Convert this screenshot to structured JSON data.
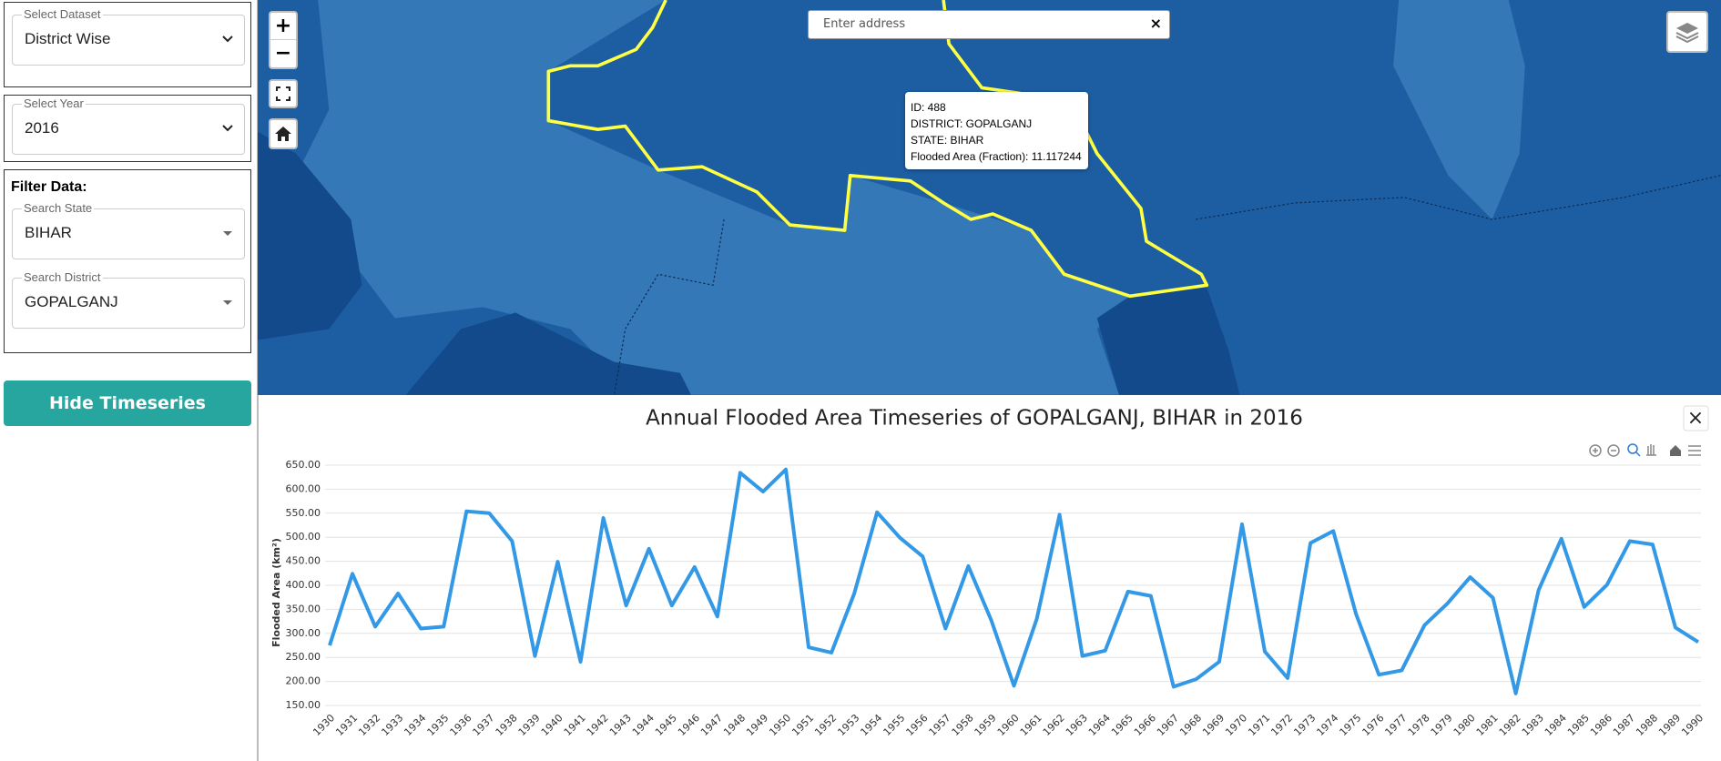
{
  "sidebar": {
    "dataset": {
      "legend": "Select Dataset",
      "value": "District Wise"
    },
    "year": {
      "legend": "Select Year",
      "value": "2016"
    },
    "filter": {
      "title": "Filter Data:",
      "state": {
        "legend": "Search State",
        "value": "BIHAR"
      },
      "district": {
        "legend": "Search District",
        "value": "GOPALGANJ"
      }
    },
    "button": "Hide Timeseries"
  },
  "map": {
    "zoom_in": "+",
    "zoom_out": "−",
    "search": {
      "placeholder": "Enter address",
      "clear": "×"
    },
    "tooltip": {
      "lines": [
        "ID: 488",
        "DISTRICT: GOPALGANJ",
        "STATE: BIHAR",
        "Flooded Area (Fraction): 11.117244"
      ]
    }
  },
  "panel": {
    "close": "×"
  },
  "chart_data": {
    "type": "line",
    "title": "Annual Flooded Area Timeseries of GOPALGANJ, BIHAR in 2016",
    "y_label": "Flooded Area (km²)",
    "color": "#3399e6",
    "categories": [
      "1930",
      "1931",
      "1932",
      "1933",
      "1934",
      "1935",
      "1936",
      "1937",
      "1938",
      "1939",
      "1940",
      "1941",
      "1942",
      "1943",
      "1944",
      "1945",
      "1946",
      "1947",
      "1948",
      "1949",
      "1950",
      "1951",
      "1952",
      "1953",
      "1954",
      "1955",
      "1956",
      "1957",
      "1958",
      "1959",
      "1960",
      "1961",
      "1962",
      "1963",
      "1964",
      "1965",
      "1966",
      "1967",
      "1968",
      "1969",
      "1970",
      "1971",
      "1972",
      "1973",
      "1974",
      "1975",
      "1976",
      "1977",
      "1978",
      "1979",
      "1980",
      "1981",
      "1982",
      "1983",
      "1984",
      "1985",
      "1986",
      "1987",
      "1988",
      "1989",
      "1990"
    ],
    "values": [
      275,
      424,
      314,
      383,
      310,
      314,
      554,
      550,
      492,
      253,
      449,
      241,
      540,
      358,
      476,
      358,
      438,
      335,
      634,
      595,
      641,
      271,
      260,
      383,
      552,
      499,
      460,
      310,
      440,
      328,
      191,
      330,
      547,
      253,
      264,
      387,
      378,
      189,
      205,
      241,
      527,
      262,
      207,
      488,
      513,
      340,
      214,
      223,
      317,
      362,
      417,
      374,
      175,
      390,
      497,
      355,
      401,
      492,
      485,
      312,
      282
    ],
    "ylim": [
      150,
      650
    ],
    "yticks": [
      {
        "value": 150,
        "label": "150.00"
      },
      {
        "value": 200,
        "label": "200.00"
      },
      {
        "value": 250,
        "label": "250.00"
      },
      {
        "value": 300,
        "label": "300.00"
      },
      {
        "value": 350,
        "label": "350.00"
      },
      {
        "value": 400,
        "label": "400.00"
      },
      {
        "value": 450,
        "label": "450.00"
      },
      {
        "value": 500,
        "label": "500.00"
      },
      {
        "value": 550,
        "label": "550.00"
      },
      {
        "value": 600,
        "label": "600.00"
      },
      {
        "value": 650,
        "label": "650.00"
      }
    ],
    "grid": true
  }
}
